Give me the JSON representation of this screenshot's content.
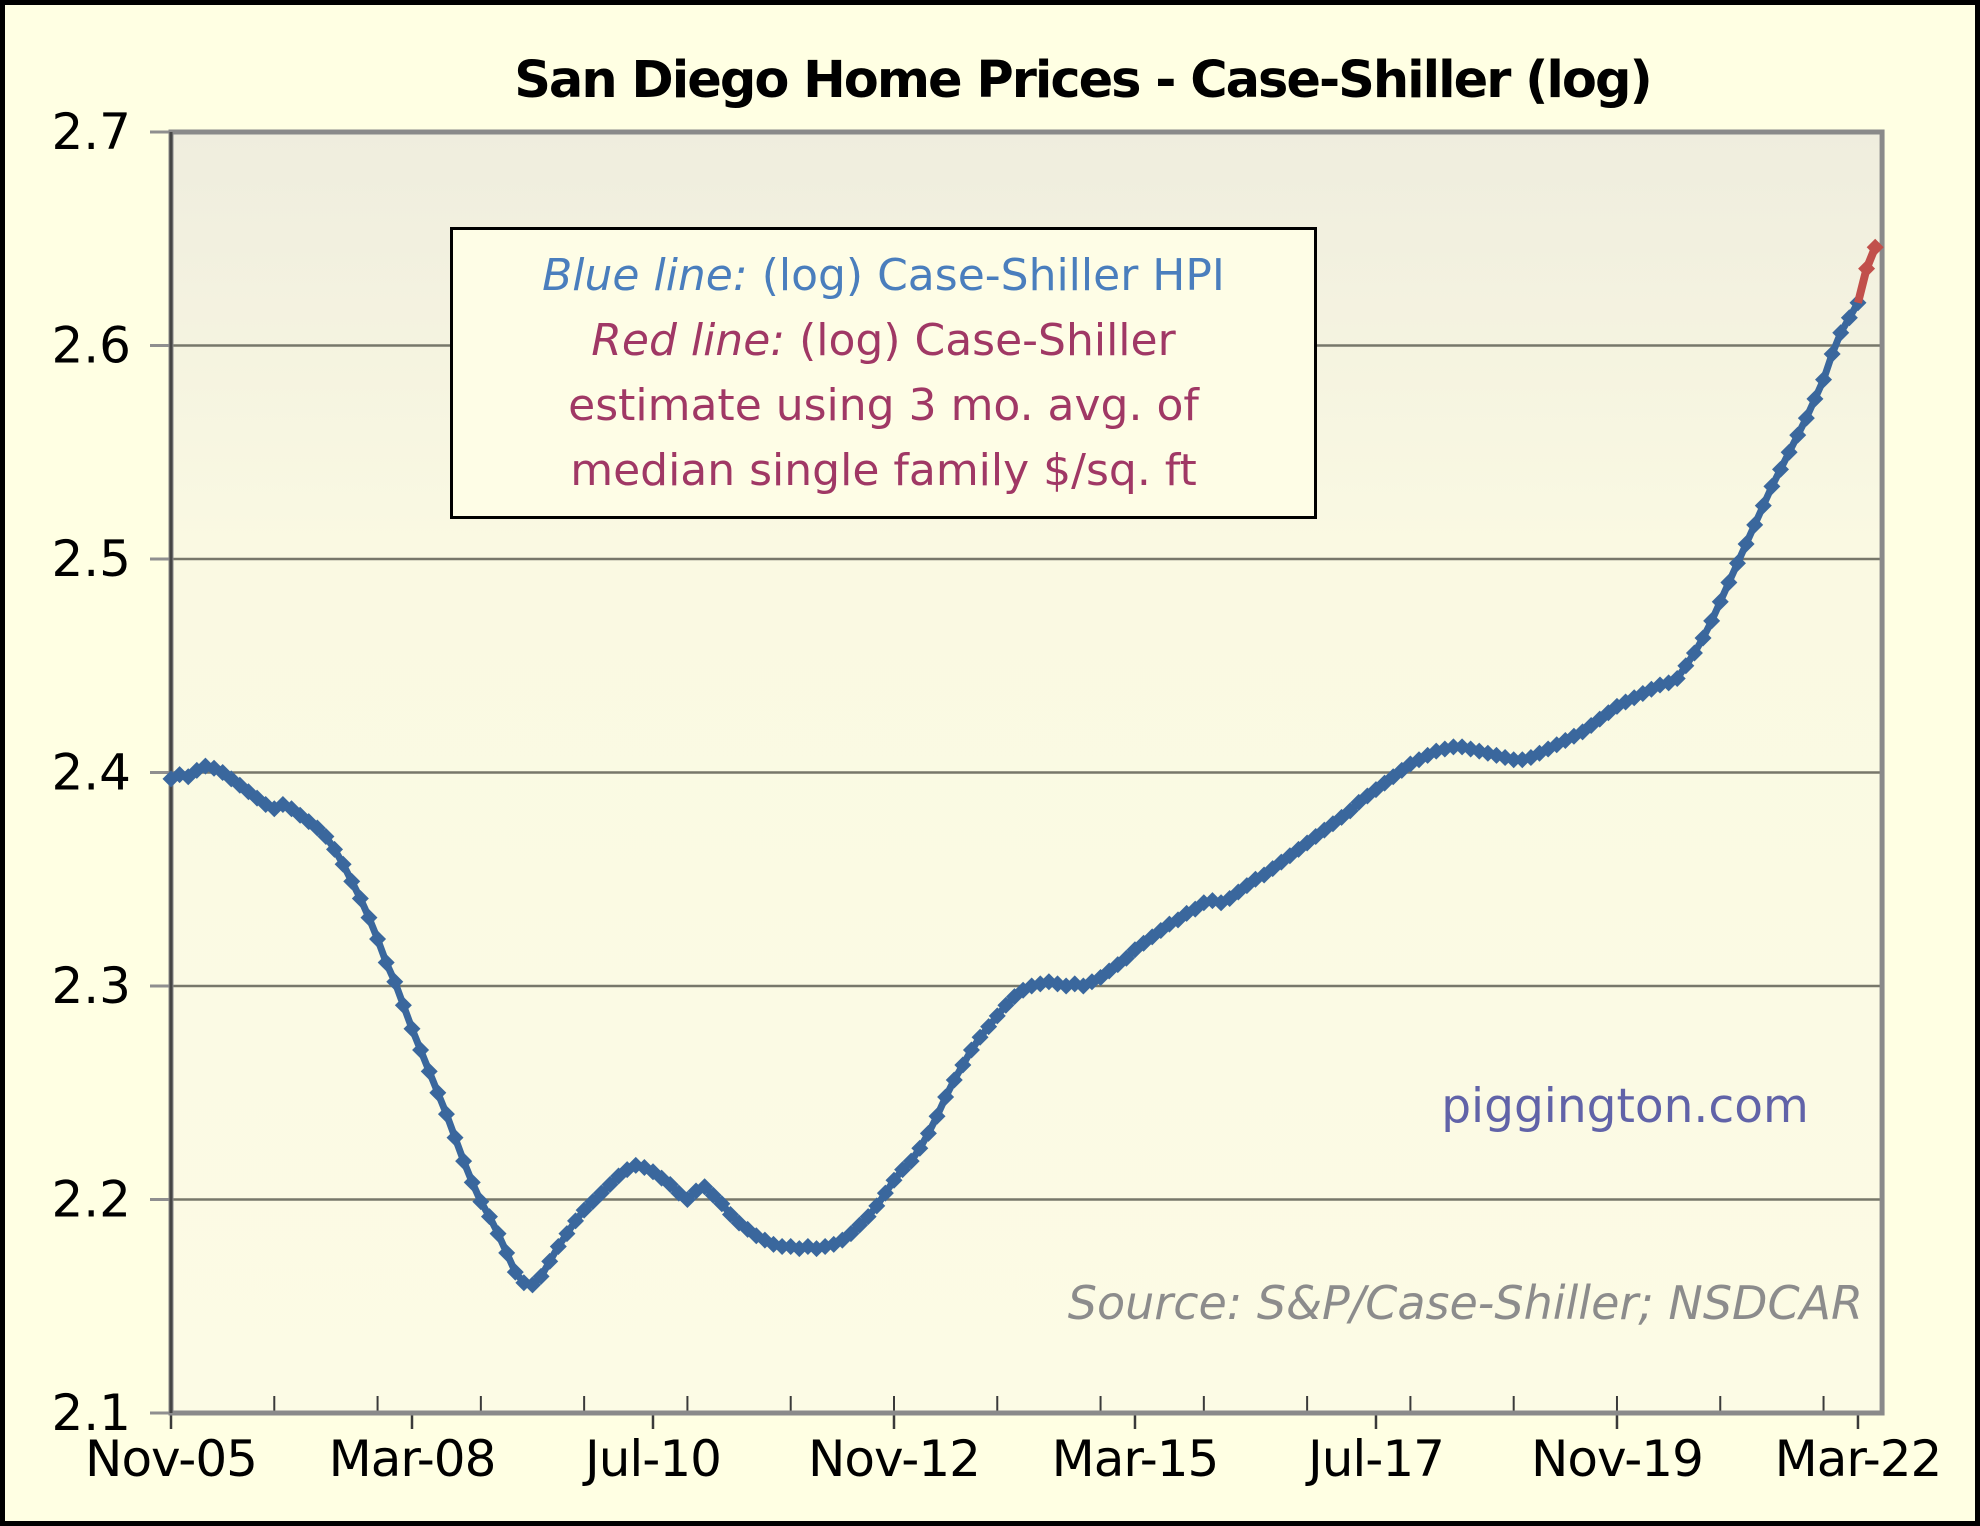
{
  "title": "San Diego Home Prices - Case-Shiller (log)",
  "watermark": "piggington.com",
  "source_note": "Source: S&P/Case-Shiller; NSDCAR",
  "legend": {
    "line1": {
      "em": "Blue line:",
      "rest": " (log) Case-Shiller HPI"
    },
    "line2": {
      "em": "Red line:",
      "rest": " (log) Case-Shiller"
    },
    "line3": "estimate using 3 mo. avg. of",
    "line4": "median single family $/sq. ft"
  },
  "colors": {
    "page_bg": "#FFFFE3",
    "plot_bg_top": "#EFEDDE",
    "plot_bg_mid": "#FAF9E2",
    "plot_bg_bottom": "#FCFBE5",
    "gridline": "#77776A",
    "frame": "#8A8A8A",
    "frame_left": "#454545",
    "tick": "#8F8F8F",
    "tick_x": "#3A3A3A",
    "axis_text": "#000000",
    "blue_line": "#3A679D",
    "red_line": "#C1504B",
    "legend_blue_text": "#4A7EBD",
    "legend_maroon_text": "#A03865",
    "watermark_text": "#6163A8",
    "source_text": "#8C8C8C"
  },
  "chart_data": {
    "type": "line",
    "title": "San Diego Home Prices - Case-Shiller (log)",
    "xlabel": "",
    "ylabel": "",
    "grid": true,
    "legend_position": "inside-top-left-box",
    "ylim": [
      2.1,
      2.7
    ],
    "y_ticks": [
      2.1,
      2.2,
      2.3,
      2.4,
      2.5,
      2.6,
      2.7
    ],
    "x_start_month": "Nov-05",
    "x_axis_max_month_index": 198.8,
    "x_major_ticks": [
      {
        "month_index": 0,
        "label": "Nov-05"
      },
      {
        "month_index": 28,
        "label": "Mar-08"
      },
      {
        "month_index": 56,
        "label": "Jul-10"
      },
      {
        "month_index": 84,
        "label": "Nov-12"
      },
      {
        "month_index": 112,
        "label": "Mar-15"
      },
      {
        "month_index": 140,
        "label": "Jul-17"
      },
      {
        "month_index": 168,
        "label": "Nov-19"
      },
      {
        "month_index": 196,
        "label": "Mar-22"
      }
    ],
    "x_minor_tick_interval_months": 12,
    "x_minor_tick_first_month": 12,
    "x_minor_tick_last_month": 192,
    "series": [
      {
        "name": "(log) Case-Shiller HPI",
        "color": "#3A679D",
        "start_month_index": 0,
        "markers": "diamond",
        "skip_first_marker": false,
        "values": [
          2.397,
          2.399,
          2.398,
          2.401,
          2.403,
          2.402,
          2.4,
          2.397,
          2.394,
          2.391,
          2.388,
          2.385,
          2.383,
          2.385,
          2.383,
          2.38,
          2.377,
          2.374,
          2.37,
          2.364,
          2.357,
          2.349,
          2.341,
          2.332,
          2.322,
          2.311,
          2.302,
          2.291,
          2.28,
          2.27,
          2.26,
          2.25,
          2.24,
          2.229,
          2.218,
          2.208,
          2.199,
          2.192,
          2.184,
          2.175,
          2.166,
          2.161,
          2.16,
          2.164,
          2.171,
          2.178,
          2.184,
          2.19,
          2.195,
          2.199,
          2.203,
          2.207,
          2.211,
          2.214,
          2.216,
          2.215,
          2.213,
          2.21,
          2.207,
          2.203,
          2.2,
          2.204,
          2.206,
          2.202,
          2.198,
          2.193,
          2.189,
          2.186,
          2.183,
          2.181,
          2.179,
          2.178,
          2.178,
          2.177,
          2.178,
          2.177,
          2.178,
          2.179,
          2.181,
          2.184,
          2.188,
          2.192,
          2.197,
          2.203,
          2.209,
          2.214,
          2.218,
          2.224,
          2.231,
          2.239,
          2.248,
          2.256,
          2.263,
          2.27,
          2.276,
          2.281,
          2.286,
          2.291,
          2.295,
          2.298,
          2.3,
          2.301,
          2.302,
          2.301,
          2.3,
          2.301,
          2.3,
          2.302,
          2.304,
          2.307,
          2.31,
          2.313,
          2.317,
          2.32,
          2.323,
          2.326,
          2.329,
          2.331,
          2.334,
          2.336,
          2.339,
          2.34,
          2.339,
          2.341,
          2.344,
          2.347,
          2.35,
          2.352,
          2.355,
          2.358,
          2.361,
          2.364,
          2.367,
          2.37,
          2.373,
          2.376,
          2.379,
          2.382,
          2.386,
          2.389,
          2.392,
          2.395,
          2.398,
          2.401,
          2.404,
          2.406,
          2.408,
          2.41,
          2.411,
          2.412,
          2.412,
          2.411,
          2.41,
          2.409,
          2.408,
          2.407,
          2.406,
          2.406,
          2.407,
          2.409,
          2.411,
          2.413,
          2.415,
          2.417,
          2.419,
          2.422,
          2.425,
          2.428,
          2.431,
          2.433,
          2.435,
          2.437,
          2.439,
          2.441,
          2.442,
          2.444,
          2.45,
          2.456,
          2.463,
          2.471,
          2.48,
          2.489,
          2.498,
          2.507,
          2.516,
          2.525,
          2.534,
          2.542,
          2.55,
          2.558,
          2.566,
          2.575,
          2.584,
          2.596,
          2.606,
          2.613,
          2.62
        ]
      },
      {
        "name": "(log) Case-Shiller estimate using 3 mo. avg. of median single family $/sq. ft",
        "color": "#C1504B",
        "start_month_index": 196,
        "markers": "diamond",
        "skip_first_marker": true,
        "values": [
          2.62,
          2.636,
          2.646
        ]
      }
    ]
  },
  "plot_geometry_note": "log10 index values, y gridlines every 0.1 from 2.1 to 2.7"
}
